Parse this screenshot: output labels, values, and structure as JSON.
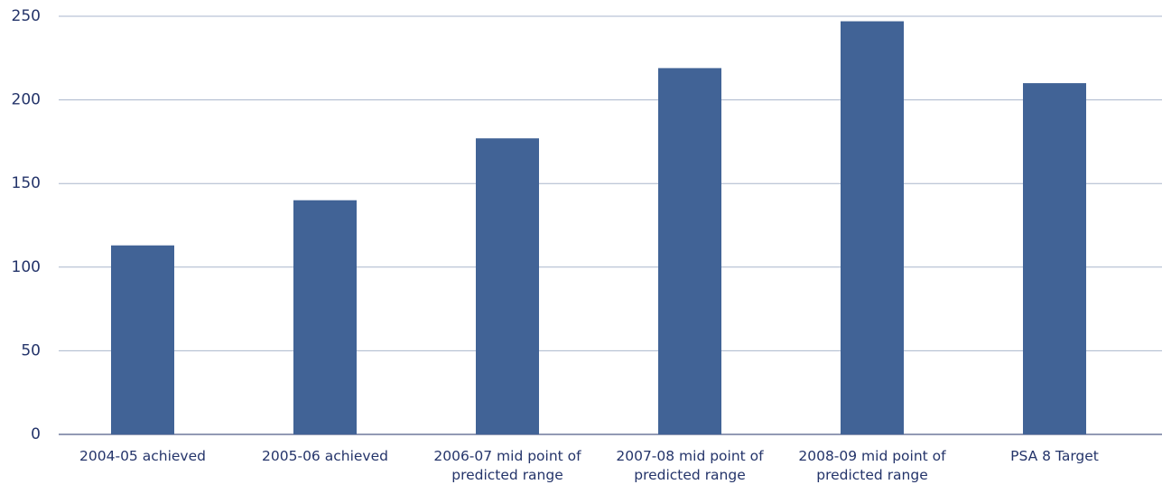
{
  "chart_data": {
    "type": "bar",
    "categories": [
      "2004-05 achieved",
      "2005-06 achieved",
      "2006-07 mid point of predicted range",
      "2007-08 mid point of predicted range",
      "2008-09 mid point of predicted range",
      "PSA 8 Target"
    ],
    "values": [
      113,
      140,
      177,
      219,
      247,
      210
    ],
    "color": "#416396",
    "ylim": [
      0,
      250
    ],
    "yticks": [
      0,
      50,
      100,
      150,
      200,
      250
    ],
    "grid": true
  }
}
